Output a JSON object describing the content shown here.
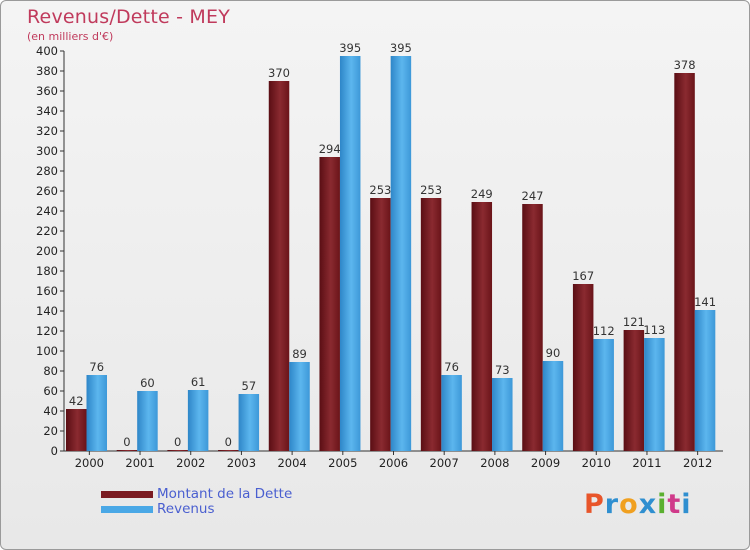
{
  "header": {
    "title": "Revenus/Dette - MEY",
    "subtitle": "(en milliers d'€)"
  },
  "legend": {
    "items": [
      {
        "label": "Montant de la Dette",
        "color": "#7a1a20"
      },
      {
        "label": "Revenus",
        "color": "#4aa8e6"
      }
    ]
  },
  "logo": {
    "text": "Proxiti",
    "colors": [
      "#e8552a",
      "#2f8fd0",
      "#f0a020",
      "#2f8fd0",
      "#5ab030",
      "#d03a8a",
      "#2f8fd0"
    ]
  },
  "chart_data": {
    "type": "bar",
    "title": "Revenus/Dette - MEY",
    "ylabel": "(en milliers d'€)",
    "ylim": [
      0,
      400
    ],
    "ytick_step": 20,
    "grid": false,
    "categories": [
      "2000",
      "2001",
      "2002",
      "2003",
      "2004",
      "2005",
      "2006",
      "2007",
      "2008",
      "2009",
      "2010",
      "2011",
      "2012"
    ],
    "series": [
      {
        "name": "Montant de la Dette",
        "color": "#7a1a20",
        "values": [
          42,
          0,
          0,
          0,
          370,
          294,
          253,
          253,
          249,
          247,
          167,
          121,
          378
        ]
      },
      {
        "name": "Revenus",
        "color": "#4aa8e6",
        "values": [
          76,
          60,
          61,
          57,
          89,
          395,
          395,
          76,
          73,
          90,
          112,
          113,
          141
        ]
      }
    ]
  }
}
